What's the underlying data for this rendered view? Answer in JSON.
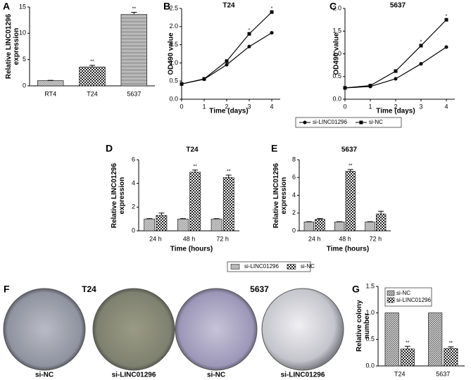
{
  "chart_data": [
    {
      "panel": "A",
      "type": "bar",
      "ylabel": "Relative LINC01296 expression",
      "categories": [
        "RT4",
        "T24",
        "5637"
      ],
      "values": [
        1,
        3.6,
        13.6
      ],
      "errors": [
        0.05,
        0.3,
        0.4
      ],
      "significance": [
        null,
        "**",
        "**"
      ],
      "patterns": [
        "gray",
        "checker",
        "hlines"
      ],
      "ylim": [
        0,
        15
      ],
      "yticks": [
        0,
        5,
        10,
        15
      ]
    },
    {
      "panel": "B",
      "type": "line",
      "title": "T24",
      "xlabel": "Time (days)",
      "ylabel": "OD490 value",
      "x": [
        0,
        1,
        2,
        3,
        4
      ],
      "series": [
        {
          "color": "#000000",
          "marker": "circle",
          "values": [
            0.42,
            0.55,
            0.95,
            1.45,
            1.83
          ]
        },
        {
          "color": "#000000",
          "marker": "square",
          "values": [
            0.42,
            0.56,
            1.05,
            1.8,
            2.4
          ],
          "significance": [
            null,
            null,
            null,
            "*",
            "*"
          ]
        }
      ],
      "xlim": [
        0,
        4
      ],
      "xticks": [
        0,
        1,
        2,
        3,
        4
      ],
      "ylim": [
        0,
        2.5
      ],
      "yticks": [
        {
          "value": 0,
          "label": "0.0"
        },
        {
          "value": 0.5,
          "label": "0.5"
        },
        {
          "value": 1,
          "label": "1.0"
        },
        {
          "value": 1.5,
          "label": "1.5"
        },
        {
          "value": 2,
          "label": "2.0"
        },
        {
          "value": 2.5,
          "label": "2.5"
        }
      ]
    },
    {
      "panel": "C",
      "type": "line",
      "title": "5637",
      "xlabel": "Time (days)",
      "ylabel": "OD490 value",
      "x": [
        0,
        1,
        2,
        3,
        4
      ],
      "series": [
        {
          "color": "#000000",
          "marker": "circle",
          "values": [
            0.25,
            0.28,
            0.45,
            0.78,
            1.15
          ]
        },
        {
          "color": "#000000",
          "marker": "square",
          "values": [
            0.25,
            0.3,
            0.62,
            1.18,
            1.75
          ],
          "significance": [
            null,
            null,
            null,
            "*",
            "*"
          ]
        }
      ],
      "xlim": [
        0,
        4
      ],
      "xticks": [
        0,
        1,
        2,
        3,
        4
      ],
      "ylim": [
        0,
        2
      ],
      "yticks": [
        {
          "value": 0,
          "label": "0.0"
        },
        {
          "value": 0.5,
          "label": "0.5"
        },
        {
          "value": 1,
          "label": "1.0"
        },
        {
          "value": 1.5,
          "label": "1.5"
        },
        {
          "value": 2,
          "label": "2.0"
        }
      ]
    },
    {
      "panel": "D",
      "type": "grouped_bar",
      "title": "T24",
      "xlabel": "Time (hours)",
      "ylabel": "Relative LINC01296 expression",
      "categories": [
        "24 h",
        "48 h",
        "72 h"
      ],
      "series": [
        {
          "pattern": "gray",
          "values": [
            1,
            1,
            1
          ],
          "errors": [
            0.03,
            0.03,
            0.03
          ]
        },
        {
          "pattern": "checker",
          "values": [
            1.3,
            4.95,
            4.5
          ],
          "errors": [
            0.2,
            0.18,
            0.2
          ],
          "significance": [
            null,
            "**",
            "**"
          ]
        }
      ],
      "ylim": [
        0,
        6
      ],
      "yticks": [
        0,
        2,
        4,
        6
      ]
    },
    {
      "panel": "E",
      "type": "grouped_bar",
      "title": "5637",
      "xlabel": "Time (hours)",
      "ylabel": "Relative LINC01296 expression",
      "categories": [
        "24 h",
        "48 h",
        "72 h"
      ],
      "series": [
        {
          "pattern": "gray",
          "values": [
            1,
            1,
            1
          ],
          "errors": [
            0.03,
            0.03,
            0.03
          ]
        },
        {
          "pattern": "checker",
          "values": [
            1.3,
            6.7,
            1.9
          ],
          "errors": [
            0.08,
            0.2,
            0.3
          ],
          "significance": [
            null,
            "**",
            null
          ]
        }
      ],
      "ylim": [
        0,
        8
      ],
      "yticks": [
        0,
        2,
        4,
        6,
        8
      ]
    },
    {
      "panel": "G",
      "type": "grouped_bar",
      "ylabel": "Relative colony number",
      "legend": "upper-left",
      "categories": [
        "T24",
        "5637"
      ],
      "series": [
        {
          "name": "si-NC",
          "pattern": "diag",
          "values": [
            1,
            1
          ]
        },
        {
          "name": "si-LINC01296",
          "pattern": "checker",
          "values": [
            0.32,
            0.33
          ],
          "errors": [
            0.05,
            0.03
          ],
          "significance": [
            "**",
            "**"
          ]
        }
      ],
      "ylim": [
        0,
        1.5
      ],
      "yticks": [
        {
          "value": 0,
          "label": "0.0"
        },
        {
          "value": 0.5,
          "label": "0.5"
        },
        {
          "value": 1,
          "label": "1.0"
        },
        {
          "value": 1.5,
          "label": "1.5"
        }
      ]
    }
  ],
  "shared_legends": [
    {
      "entries": [
        "si-LINC01296",
        "si-NC"
      ]
    },
    {
      "entries": [
        "si-LINC01296",
        "si-NC"
      ]
    }
  ],
  "colony_panel": {
    "panel": "F",
    "groups": [
      {
        "title": "T24",
        "captions": [
          "si-NC",
          "si-LINC01296"
        ]
      },
      {
        "title": "5637",
        "captions": [
          "si-NC",
          "si-LINC01296"
        ]
      }
    ]
  }
}
